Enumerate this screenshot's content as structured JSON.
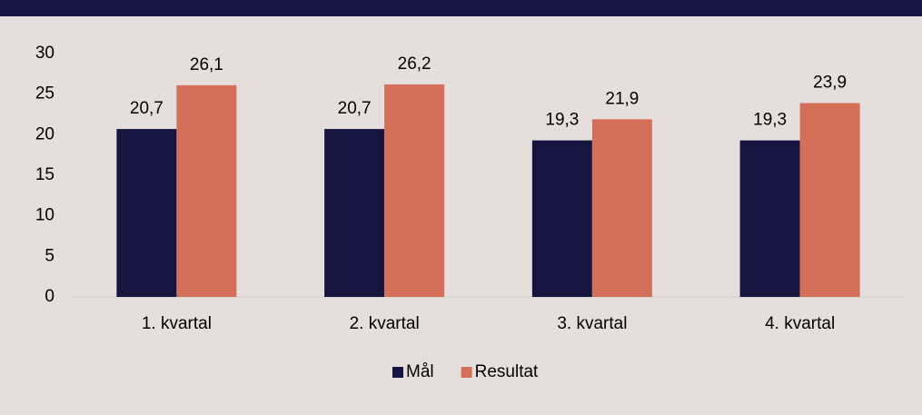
{
  "chart_data": {
    "type": "bar",
    "categories": [
      "1. kvartal",
      "2. kvartal",
      "3. kvartal",
      "4. kvartal"
    ],
    "series": [
      {
        "name": "Mål",
        "color": "#16153f",
        "values": [
          20.7,
          20.7,
          19.3,
          19.3
        ],
        "value_labels": [
          "20,7",
          "20,7",
          "19,3",
          "19,3"
        ]
      },
      {
        "name": "Resultat",
        "color": "#d4705a",
        "values": [
          26.1,
          26.2,
          21.9,
          23.9
        ],
        "value_labels": [
          "26,1",
          "26,2",
          "21,9",
          "23,9"
        ]
      }
    ],
    "ylim": [
      0,
      30
    ],
    "yticks": [
      0,
      5,
      10,
      15,
      20,
      25,
      30
    ],
    "grid": false,
    "legend": "bottom"
  }
}
